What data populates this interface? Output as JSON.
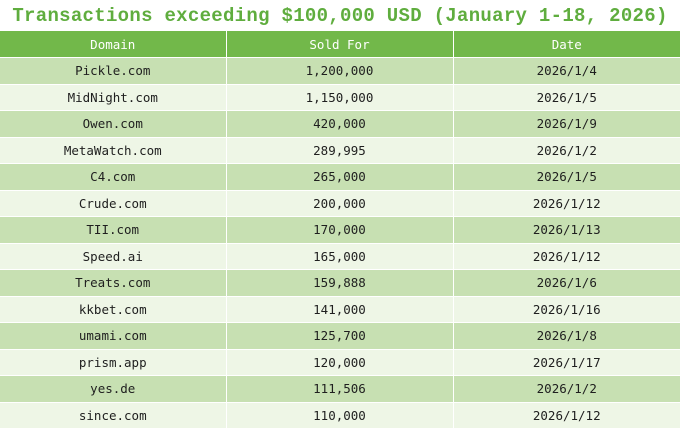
{
  "title": "Transactions exceeding $100,000 USD (January 1-18, 2026)",
  "columns": [
    "Domain",
    "Sold For",
    "Date"
  ],
  "rows": [
    {
      "domain": "Pickle.com",
      "sold_for": "1,200,000",
      "date": "2026/1/4"
    },
    {
      "domain": "MidNight.com",
      "sold_for": "1,150,000",
      "date": "2026/1/5"
    },
    {
      "domain": "Owen.com",
      "sold_for": "420,000",
      "date": "2026/1/9"
    },
    {
      "domain": "MetaWatch.com",
      "sold_for": "289,995",
      "date": "2026/1/2"
    },
    {
      "domain": "C4.com",
      "sold_for": "265,000",
      "date": "2026/1/5"
    },
    {
      "domain": "Crude.com",
      "sold_for": "200,000",
      "date": "2026/1/12"
    },
    {
      "domain": "TII.com",
      "sold_for": "170,000",
      "date": "2026/1/13"
    },
    {
      "domain": "Speed.ai",
      "sold_for": "165,000",
      "date": "2026/1/12"
    },
    {
      "domain": "Treats.com",
      "sold_for": "159,888",
      "date": "2026/1/6"
    },
    {
      "domain": "kkbet.com",
      "sold_for": "141,000",
      "date": "2026/1/16"
    },
    {
      "domain": "umami.com",
      "sold_for": "125,700",
      "date": "2026/1/8"
    },
    {
      "domain": "prism.app",
      "sold_for": "120,000",
      "date": "2026/1/17"
    },
    {
      "domain": "yes.de",
      "sold_for": "111,506",
      "date": "2026/1/2"
    },
    {
      "domain": "since.com",
      "sold_for": "110,000",
      "date": "2026/1/12"
    }
  ],
  "colors": {
    "title": "#5fad3e",
    "header_bg": "#72b84a",
    "row_dark": "#c7e0b2",
    "row_light": "#eef6e6"
  }
}
